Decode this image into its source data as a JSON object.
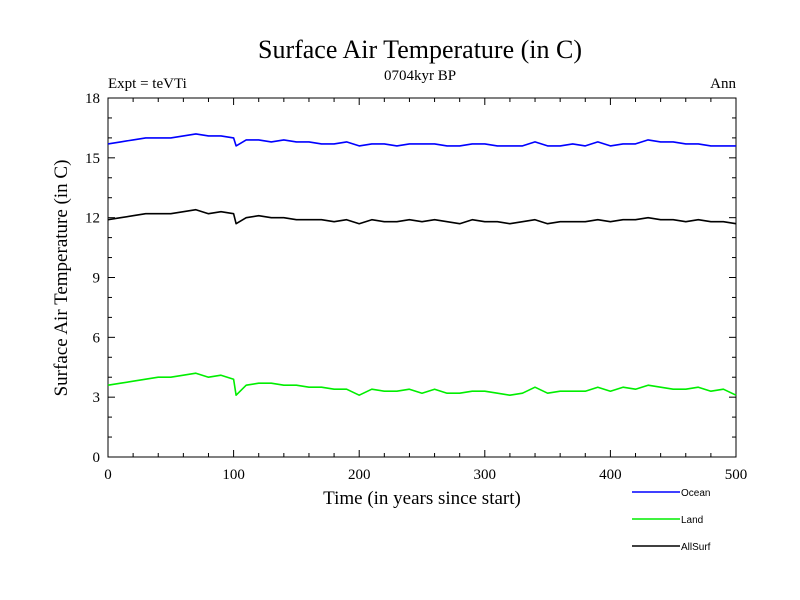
{
  "chart_data": {
    "type": "line",
    "title": "Surface Air Temperature (in C)",
    "subtitle": "0704kyr BP",
    "left_annotation": "Expt = teVTi",
    "right_annotation": "Ann",
    "xlabel": "Time (in years since start)",
    "ylabel": "Surface Air Temperature (in C)",
    "xlim": [
      0,
      500
    ],
    "ylim": [
      0,
      18
    ],
    "xticks": [
      "0",
      "100",
      "200",
      "300",
      "400",
      "500"
    ],
    "yticks": [
      "0",
      "3",
      "6",
      "9",
      "12",
      "15",
      "18"
    ],
    "grid": false,
    "legend_position": "bottom-right",
    "series": [
      {
        "name": "Ocean",
        "color": "#0000ff",
        "x": [
          0,
          10,
          20,
          30,
          40,
          50,
          60,
          70,
          80,
          90,
          100,
          102,
          110,
          120,
          130,
          140,
          150,
          160,
          170,
          180,
          190,
          200,
          210,
          220,
          230,
          240,
          250,
          260,
          270,
          280,
          290,
          300,
          310,
          320,
          330,
          340,
          350,
          360,
          370,
          380,
          390,
          400,
          410,
          420,
          430,
          440,
          450,
          460,
          470,
          480,
          490,
          500
        ],
        "values": [
          15.7,
          15.8,
          15.9,
          16.0,
          16.0,
          16.0,
          16.1,
          16.2,
          16.1,
          16.1,
          16.0,
          15.6,
          15.9,
          15.9,
          15.8,
          15.9,
          15.8,
          15.8,
          15.7,
          15.7,
          15.8,
          15.6,
          15.7,
          15.7,
          15.6,
          15.7,
          15.7,
          15.7,
          15.6,
          15.6,
          15.7,
          15.7,
          15.6,
          15.6,
          15.6,
          15.8,
          15.6,
          15.6,
          15.7,
          15.6,
          15.8,
          15.6,
          15.7,
          15.7,
          15.9,
          15.8,
          15.8,
          15.7,
          15.7,
          15.6,
          15.6,
          15.6
        ]
      },
      {
        "name": "Land",
        "color": "#00ee00",
        "x": [
          0,
          10,
          20,
          30,
          40,
          50,
          60,
          70,
          80,
          90,
          100,
          102,
          110,
          120,
          130,
          140,
          150,
          160,
          170,
          180,
          190,
          200,
          210,
          220,
          230,
          240,
          250,
          260,
          270,
          280,
          290,
          300,
          310,
          320,
          330,
          340,
          350,
          360,
          370,
          380,
          390,
          400,
          410,
          420,
          430,
          440,
          450,
          460,
          470,
          480,
          490,
          500
        ],
        "values": [
          3.6,
          3.7,
          3.8,
          3.9,
          4.0,
          4.0,
          4.1,
          4.2,
          4.0,
          4.1,
          3.9,
          3.1,
          3.6,
          3.7,
          3.7,
          3.6,
          3.6,
          3.5,
          3.5,
          3.4,
          3.4,
          3.1,
          3.4,
          3.3,
          3.3,
          3.4,
          3.2,
          3.4,
          3.2,
          3.2,
          3.3,
          3.3,
          3.2,
          3.1,
          3.2,
          3.5,
          3.2,
          3.3,
          3.3,
          3.3,
          3.5,
          3.3,
          3.5,
          3.4,
          3.6,
          3.5,
          3.4,
          3.4,
          3.5,
          3.3,
          3.4,
          3.1
        ]
      },
      {
        "name": "AllSurf",
        "color": "#000000",
        "x": [
          0,
          10,
          20,
          30,
          40,
          50,
          60,
          70,
          80,
          90,
          100,
          102,
          110,
          120,
          130,
          140,
          150,
          160,
          170,
          180,
          190,
          200,
          210,
          220,
          230,
          240,
          250,
          260,
          270,
          280,
          290,
          300,
          310,
          320,
          330,
          340,
          350,
          360,
          370,
          380,
          390,
          400,
          410,
          420,
          430,
          440,
          450,
          460,
          470,
          480,
          490,
          500
        ],
        "values": [
          11.9,
          12.0,
          12.1,
          12.2,
          12.2,
          12.2,
          12.3,
          12.4,
          12.2,
          12.3,
          12.2,
          11.7,
          12.0,
          12.1,
          12.0,
          12.0,
          11.9,
          11.9,
          11.9,
          11.8,
          11.9,
          11.7,
          11.9,
          11.8,
          11.8,
          11.9,
          11.8,
          11.9,
          11.8,
          11.7,
          11.9,
          11.8,
          11.8,
          11.7,
          11.8,
          11.9,
          11.7,
          11.8,
          11.8,
          11.8,
          11.9,
          11.8,
          11.9,
          11.9,
          12.0,
          11.9,
          11.9,
          11.8,
          11.9,
          11.8,
          11.8,
          11.7
        ]
      }
    ]
  }
}
